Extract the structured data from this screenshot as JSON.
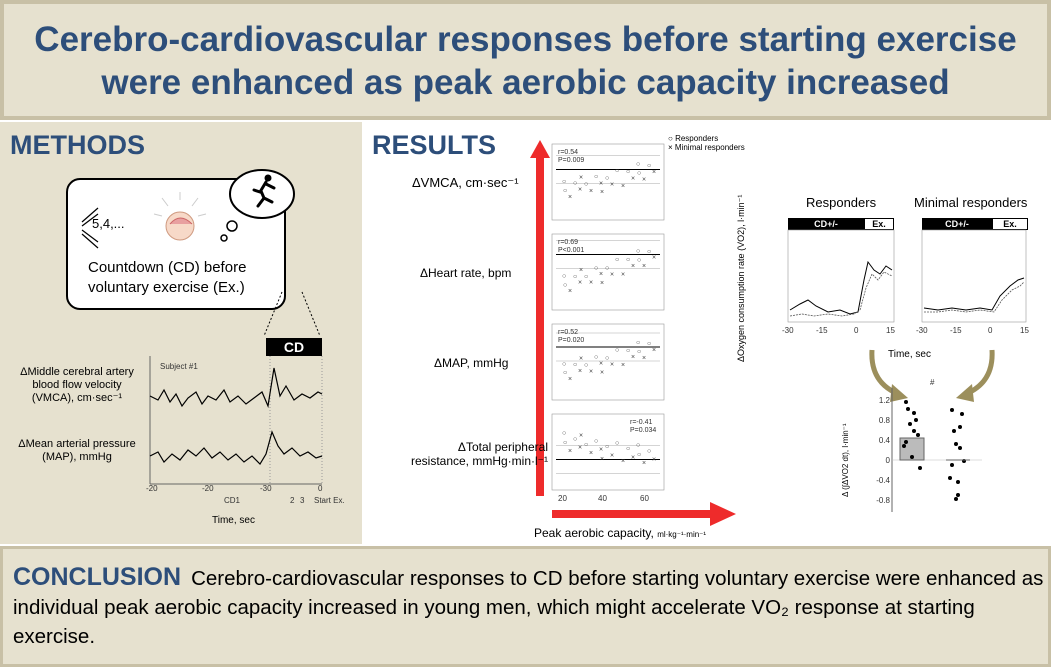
{
  "header": {
    "title_line1": "Cerebro-cardiovascular responses before starting exercise",
    "title_line2": "were enhanced as peak aerobic capacity increased"
  },
  "methods": {
    "heading": "METHODS",
    "countdown_numbers": "5,4,...",
    "caption_line1": "Countdown (CD) before",
    "caption_line2": "voluntary exercise (Ex.)",
    "cd_label": "CD",
    "subject_label": "Subject #1",
    "mca_label_line1": "ΔMiddle cerebral artery",
    "mca_label_line2": "blood flow velocity",
    "mca_label_line3": "(VMCA), cm·sec⁻¹",
    "map_label_line1": "ΔMean arterial pressure",
    "map_label_line2": "(MAP), mmHg",
    "time_label": "Time, sec",
    "x_ticks": [
      "-20",
      "-20",
      "-30",
      "0"
    ],
    "cd_markers": [
      "CD1",
      "2",
      "3",
      "Start Ex."
    ]
  },
  "results": {
    "heading": "RESULTS",
    "legend": {
      "responders": "Responders",
      "minimal": "Minimal responders"
    },
    "rows": [
      {
        "label": "ΔVMCA, cm·sec⁻¹",
        "r": "r=0.54",
        "p": "P=0.009"
      },
      {
        "label": "ΔHeart rate, bpm",
        "r": "r=0.69",
        "p": "P<0.001"
      },
      {
        "label": "ΔMAP, mmHg",
        "r": "r=0.52",
        "p": "P=0.020"
      },
      {
        "label": "ΔTotal peripheral",
        "label2": "resistance, mmHg·min·l⁻¹",
        "r": "r=-0.41",
        "p": "P=0.034"
      }
    ],
    "xaxis_label": "Peak aerobic capacity,",
    "xaxis_unit": "ml·kg⁻¹·min⁻¹",
    "scatter_x_ticks": [
      "20",
      "40",
      "60"
    ],
    "vo2": {
      "title_left": "Responders",
      "title_right": "Minimal responders",
      "bar_left": "CD+/-",
      "bar_right": "Ex.",
      "ylabel": "ΔOxygen consumption rate (VO2), l·min⁻¹",
      "xlabel": "Time, sec",
      "x_ticks": [
        "-30",
        "-15",
        "0",
        "15"
      ]
    },
    "bar_chart": {
      "ylabel": "Δ (∫ΔVO2 dt), l·min⁻¹",
      "y_ticks": [
        "1.2",
        "0.8",
        "0.4",
        "0",
        "-0.4",
        "-0.8"
      ],
      "marker": "#"
    }
  },
  "conclusion": {
    "heading": "CONCLUSION",
    "text": "Cerebro-cardiovascular responses to CD before starting voluntary exercise were enhanced as individual peak aerobic capacity increased in young men, which might accelerate VO₂ response at starting exercise."
  }
}
